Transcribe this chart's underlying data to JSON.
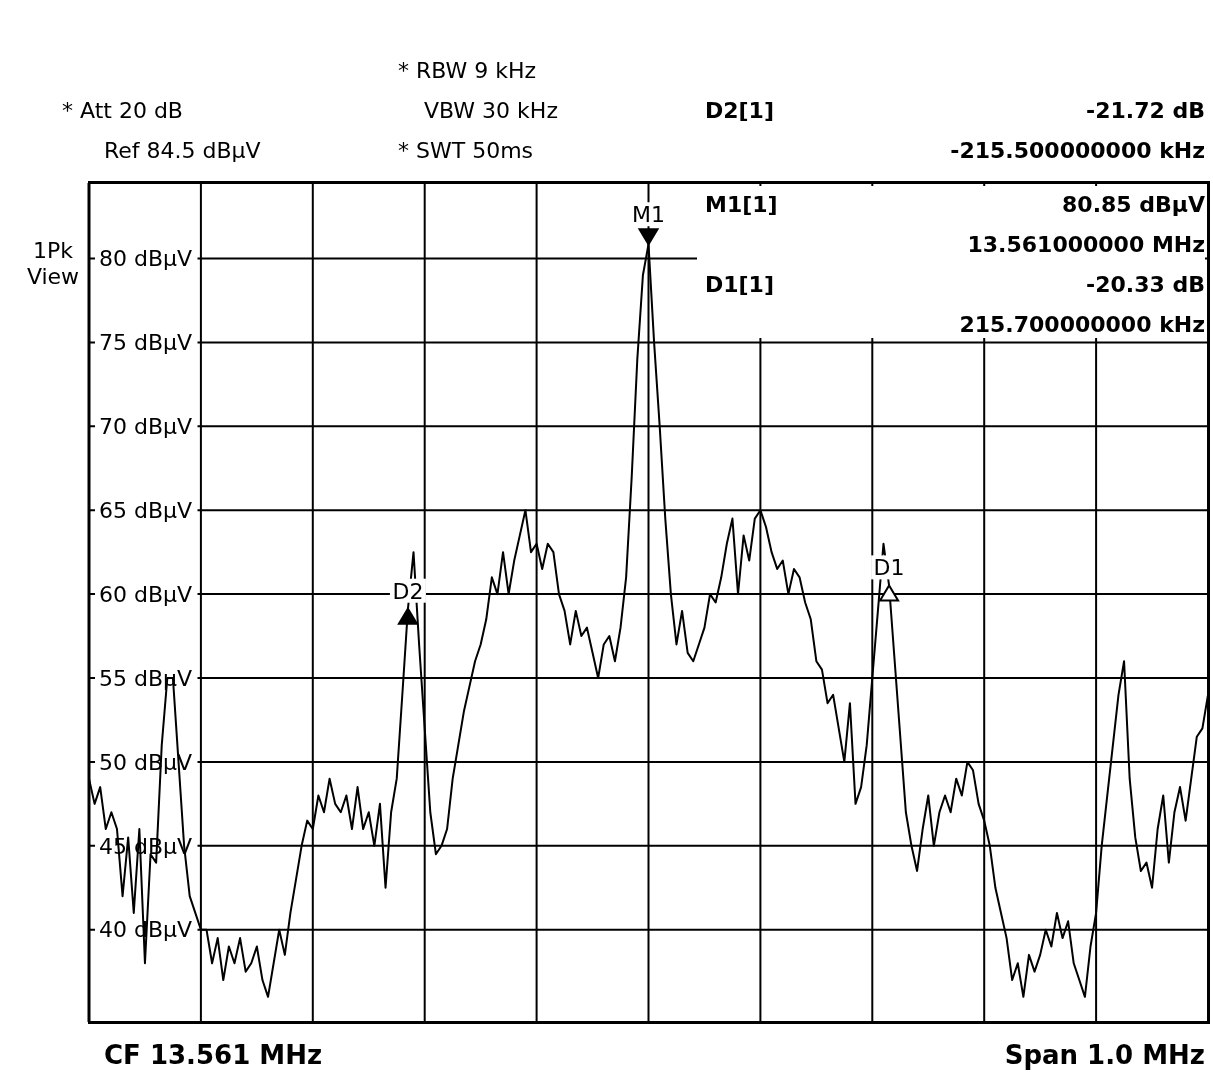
{
  "chart_data": {
    "type": "line",
    "categories": [
      null,
      null,
      null,
      null,
      null,
      null,
      null,
      null,
      null,
      null,
      null,
      null,
      null,
      null,
      null,
      null,
      null,
      null,
      null,
      null,
      null,
      null,
      null,
      null,
      null,
      null,
      null,
      null,
      null,
      null,
      null,
      null,
      null,
      null,
      null,
      null,
      null,
      null,
      null,
      null,
      null,
      null,
      null,
      null,
      null,
      null,
      null,
      null,
      null,
      null,
      null,
      null,
      null,
      null,
      null,
      null,
      null,
      null,
      null,
      null,
      null,
      null,
      null,
      null,
      null,
      null,
      null,
      null,
      null,
      null,
      null,
      null,
      null,
      null,
      null,
      null,
      null,
      null,
      null,
      null,
      null,
      null,
      null,
      null,
      null,
      null,
      null,
      null,
      null,
      null,
      null,
      null,
      null,
      null,
      null,
      null,
      null,
      null,
      null,
      null,
      null,
      null,
      null,
      null,
      null,
      null,
      null,
      null,
      null,
      null,
      null,
      null,
      null,
      null,
      null,
      null,
      null,
      null,
      null,
      null,
      null,
      null,
      null,
      null,
      null,
      null,
      null,
      null,
      null,
      null,
      null,
      null,
      null,
      null,
      null,
      null,
      null,
      null,
      null,
      null,
      null,
      null,
      null,
      null,
      null,
      null,
      null,
      null,
      null,
      null,
      null,
      null,
      null,
      null,
      null,
      null,
      null,
      null,
      null,
      null,
      null,
      null,
      null,
      null,
      null,
      null,
      null,
      null,
      null,
      null,
      null,
      null,
      null,
      null,
      null,
      null,
      null,
      null,
      null,
      null,
      null,
      null,
      null,
      null,
      null,
      null,
      null,
      null,
      null,
      null,
      null,
      null,
      null,
      null,
      null,
      null,
      null,
      null,
      null,
      null,
      null
    ],
    "ylim": [
      34.5,
      84.5
    ],
    "yticks": [
      {
        "value": 40,
        "label": "40 dBµV"
      },
      {
        "value": 45,
        "label": "45 dBµV"
      },
      {
        "value": 50,
        "label": "50 dBµV"
      },
      {
        "value": 55,
        "label": "55 dBµV"
      },
      {
        "value": 60,
        "label": "60 dBµV"
      },
      {
        "value": 65,
        "label": "65 dBµV"
      },
      {
        "value": 70,
        "label": "70 dBµV"
      },
      {
        "value": 75,
        "label": "75 dBµV"
      },
      {
        "value": 80,
        "label": "80 dBµV"
      }
    ],
    "grid": true,
    "tick_labels": "y",
    "series": [
      {
        "color": "#000000",
        "values": [
          49,
          47.5,
          48.5,
          46,
          47,
          46,
          42,
          45.5,
          41,
          46,
          38,
          44.5,
          44,
          51,
          55,
          55,
          50,
          45,
          42,
          41,
          40,
          40,
          38,
          39.5,
          37,
          39,
          38,
          39.5,
          37.5,
          38,
          39,
          37,
          36,
          38,
          40,
          38.5,
          41,
          43,
          45,
          46.5,
          46,
          48,
          47,
          49,
          47.5,
          47,
          48,
          46,
          48.5,
          46,
          47,
          45,
          47.5,
          42.5,
          47,
          49,
          54,
          59.1,
          62.5,
          57,
          52,
          47,
          44.5,
          45,
          46,
          49,
          51,
          53,
          54.5,
          56,
          57,
          58.5,
          61,
          60,
          62.5,
          60,
          62,
          63.5,
          65,
          62.5,
          63,
          61.5,
          63,
          62.5,
          60,
          59,
          57,
          59,
          57.5,
          58,
          56.5,
          55,
          57,
          57.5,
          56,
          58,
          61,
          67,
          74,
          79,
          80.85,
          75,
          70,
          64.5,
          60,
          57,
          59,
          56.5,
          56,
          57,
          58,
          60,
          59.5,
          61,
          63,
          64.5,
          60,
          63.5,
          62,
          64.5,
          65,
          64,
          62.5,
          61.5,
          62,
          60,
          61.5,
          61,
          59.5,
          58.5,
          56,
          55.5,
          53.5,
          54,
          52,
          50,
          53.5,
          47.5,
          48.5,
          51,
          55,
          59,
          63,
          60.5,
          56,
          51.5,
          47,
          45,
          43.5,
          46,
          48,
          45,
          47,
          48,
          47,
          49,
          48,
          50,
          49.5,
          47.5,
          46.5,
          45,
          42.5,
          41,
          39.5,
          37,
          38,
          36,
          38.5,
          37.5,
          38.5,
          40,
          39,
          41,
          39.5,
          40.5,
          38,
          37,
          36,
          39,
          41,
          45,
          48,
          51,
          54,
          56,
          49,
          45.5,
          43.5,
          44,
          42.5,
          46,
          48,
          44,
          47,
          48.5,
          46.5,
          49,
          51.5,
          52,
          54
        ]
      }
    ],
    "annotations": [
      "* RBW 9 kHz",
      "VBW 30 kHz",
      "* SWT 50ms",
      "* Att 20 dB",
      "Ref 84.5 dBµV",
      "D2[1]",
      "-21.72 dB",
      "-215.500000000 kHz",
      "M1[1]",
      "80.85 dBµV",
      "13.561000000 MHz",
      "D1[1]",
      "-20.33 dB",
      "215.700000000 kHz",
      "1Pk View",
      "CF 13.561 MHz",
      "Span 1.0 MHz",
      {
        "text": "M1",
        "y": 80.85
      },
      {
        "text": "D2",
        "y": 59.13
      },
      {
        "text": "D1",
        "y": 60.52
      }
    ]
  }
}
